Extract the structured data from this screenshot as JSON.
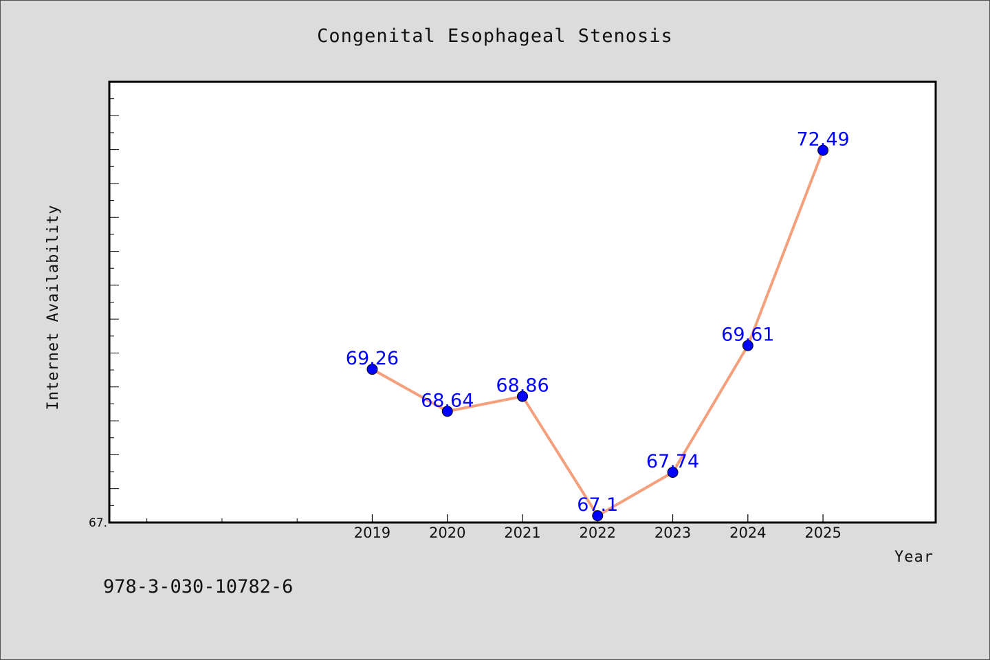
{
  "chart_data": {
    "type": "line",
    "title": "Congenital Esophageal Stenosis",
    "xlabel": "Year",
    "ylabel": "Internet Availability",
    "categories": [
      "2019",
      "2020",
      "2021",
      "2022",
      "2023",
      "2024",
      "2025"
    ],
    "series": [
      {
        "values": [
          69.26,
          68.64,
          68.86,
          67.1,
          67.74,
          69.61,
          72.49
        ]
      }
    ],
    "data_labels": [
      "69.26",
      "68.64",
      "68.86",
      "67.1",
      "67.74",
      "69.61",
      "72.49"
    ],
    "y_tick_labels": [
      "67."
    ],
    "ylim": [
      67.0,
      73.5
    ],
    "x_range_categories": [
      "2015.5",
      "2026.5"
    ],
    "grid": false,
    "legend": "none",
    "colors": {
      "line": "#f4a07c",
      "marker": "#0000ff",
      "data_label": "#0000ff",
      "plot_bg": "#ffffff",
      "page_bg": "#dcdcdc"
    }
  },
  "footnote": "978-3-030-10782-6"
}
